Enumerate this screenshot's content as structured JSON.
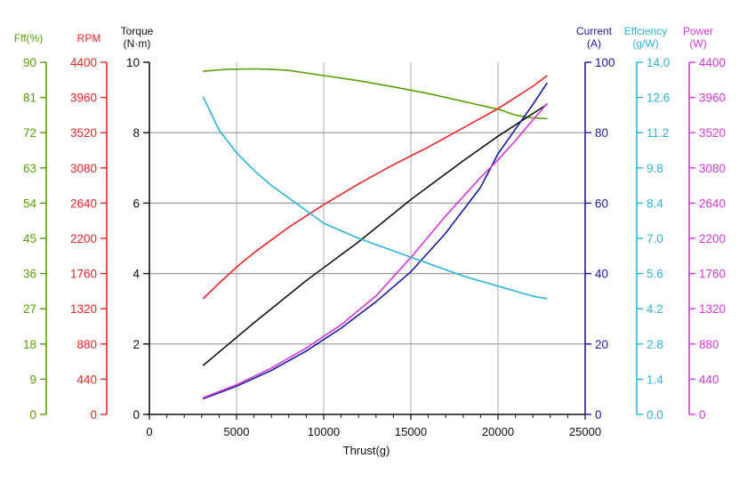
{
  "chart_data": {
    "type": "line",
    "xlabel": "Thrust(g)",
    "xlim": [
      0,
      25000
    ],
    "xticks": [
      0,
      5000,
      10000,
      15000,
      20000,
      25000
    ],
    "grid": true,
    "axes": [
      {
        "id": "eff",
        "title": [
          "Fff(%)"
        ],
        "color": "#5a9e0a",
        "side": "left",
        "ticks": [
          "90",
          "81",
          "72",
          "63",
          "54",
          "45",
          "36",
          "27",
          "18",
          "9",
          "0"
        ],
        "min": 0,
        "max": 90
      },
      {
        "id": "rpm",
        "title": [
          "RPM"
        ],
        "color": "#e8262a",
        "side": "left",
        "ticks": [
          "4400",
          "3960",
          "3520",
          "3080",
          "2640",
          "2200",
          "1760",
          "1320",
          "880",
          "440",
          "0"
        ],
        "min": 0,
        "max": 4400
      },
      {
        "id": "torque",
        "title": [
          "Torque",
          "(N·m)"
        ],
        "color": "#111111",
        "side": "left",
        "ticks": [
          "10",
          "8",
          "6",
          "4",
          "2",
          "0"
        ],
        "min": 0,
        "max": 10
      },
      {
        "id": "current",
        "title": [
          "Current",
          "(A)"
        ],
        "color": "#1a1aa0",
        "side": "right",
        "ticks": [
          "100",
          "80",
          "60",
          "40",
          "20",
          "0"
        ],
        "min": 0,
        "max": 100
      },
      {
        "id": "efficiency",
        "title": [
          "Effciency",
          "(g/W)"
        ],
        "color": "#2fb3dc",
        "side": "right",
        "ticks": [
          "14.0",
          "12.6",
          "11.2",
          "9.8",
          "8.4",
          "7.0",
          "5.6",
          "4.2",
          "2.8",
          "1.4",
          "0.0"
        ],
        "min": 0,
        "max": 14
      },
      {
        "id": "power",
        "title": [
          "Power",
          "(W)"
        ],
        "color": "#d23ad6",
        "side": "right",
        "ticks": [
          "4400",
          "3960",
          "3520",
          "3080",
          "2640",
          "2200",
          "1760",
          "1320",
          "880",
          "440",
          "0"
        ],
        "min": 0,
        "max": 4400
      }
    ],
    "series": [
      {
        "axis": "eff",
        "color": "#5a9e0a",
        "x": [
          3100,
          4500,
          6000,
          7000,
          8000,
          10000,
          12000,
          14000,
          16000,
          18000,
          20000,
          21000,
          22000,
          22800
        ],
        "y": [
          87.7,
          88.2,
          88.3,
          88.2,
          87.9,
          86.6,
          85.3,
          83.7,
          82.0,
          80.0,
          78.0,
          76.5,
          75.8,
          75.6
        ]
      },
      {
        "axis": "rpm",
        "color": "#e8262a",
        "x": [
          3100,
          4000,
          5000,
          6000,
          7000,
          8000,
          10000,
          12000,
          14000,
          16000,
          18000,
          20000,
          21000,
          22000,
          22800
        ],
        "y": [
          1450,
          1640,
          1840,
          2020,
          2180,
          2340,
          2620,
          2880,
          3120,
          3340,
          3580,
          3820,
          3960,
          4100,
          4230
        ]
      },
      {
        "axis": "torque",
        "color": "#111111",
        "x": [
          3100,
          6000,
          9000,
          12000,
          15000,
          18000,
          20000,
          22800
        ],
        "y": [
          1.4,
          2.6,
          3.8,
          4.9,
          6.1,
          7.2,
          7.9,
          8.8
        ]
      },
      {
        "axis": "current",
        "color": "#1a1aa0",
        "x": [
          3100,
          5000,
          7000,
          9000,
          11000,
          13000,
          15000,
          17000,
          19000,
          20000,
          21000,
          22000,
          22800
        ],
        "y": [
          4.5,
          8.0,
          12.5,
          18.0,
          24.5,
          32.0,
          40.5,
          51.5,
          64.5,
          74.0,
          81.0,
          88.0,
          94.0
        ]
      },
      {
        "axis": "power",
        "color": "#d23ad6",
        "x": [
          3100,
          5000,
          7000,
          9000,
          11000,
          13000,
          15000,
          17000,
          19000,
          20000,
          21000,
          22000,
          22800
        ],
        "y": [
          210,
          370,
          580,
          830,
          1120,
          1480,
          1960,
          2480,
          2960,
          3180,
          3420,
          3680,
          3880
        ]
      },
      {
        "axis": "efficiency",
        "color": "#2fb3dc",
        "x": [
          3100,
          4000,
          5000,
          6000,
          7000,
          8000,
          9000,
          10000,
          12000,
          14000,
          16000,
          18000,
          20000,
          21000,
          22000,
          22800
        ],
        "y": [
          12.6,
          11.3,
          10.4,
          9.7,
          9.1,
          8.6,
          8.1,
          7.6,
          7.0,
          6.5,
          6.0,
          5.5,
          5.1,
          4.9,
          4.7,
          4.6
        ]
      }
    ]
  }
}
